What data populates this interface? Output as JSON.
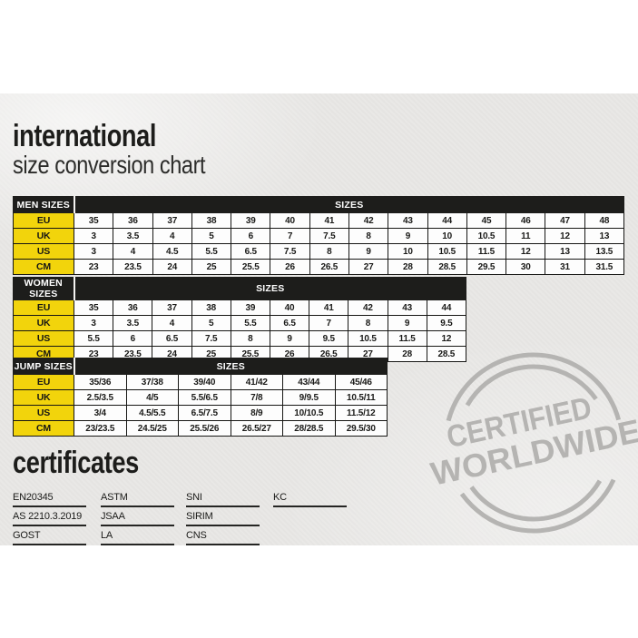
{
  "header": {
    "title_line1": "international",
    "title_line2": "size conversion chart"
  },
  "tables": [
    {
      "name": "men",
      "label": "MEN SIZES",
      "sizes_label": "SIZES",
      "rows": [
        {
          "label": "EU",
          "values": [
            "35",
            "36",
            "37",
            "38",
            "39",
            "40",
            "41",
            "42",
            "43",
            "44",
            "45",
            "46",
            "47",
            "48"
          ]
        },
        {
          "label": "UK",
          "values": [
            "3",
            "3.5",
            "4",
            "5",
            "6",
            "7",
            "7.5",
            "8",
            "9",
            "10",
            "10.5",
            "11",
            "12",
            "13"
          ]
        },
        {
          "label": "US",
          "values": [
            "3",
            "4",
            "4.5",
            "5.5",
            "6.5",
            "7.5",
            "8",
            "9",
            "10",
            "10.5",
            "11.5",
            "12",
            "13",
            "13.5"
          ]
        },
        {
          "label": "CM",
          "values": [
            "23",
            "23.5",
            "24",
            "25",
            "25.5",
            "26",
            "26.5",
            "27",
            "28",
            "28.5",
            "29.5",
            "30",
            "31",
            "31.5"
          ]
        }
      ]
    },
    {
      "name": "women",
      "label": "WOMEN SIZES",
      "sizes_label": "SIZES",
      "rows": [
        {
          "label": "EU",
          "values": [
            "35",
            "36",
            "37",
            "38",
            "39",
            "40",
            "41",
            "42",
            "43",
            "44"
          ]
        },
        {
          "label": "UK",
          "values": [
            "3",
            "3.5",
            "4",
            "5",
            "5.5",
            "6.5",
            "7",
            "8",
            "9",
            "9.5"
          ]
        },
        {
          "label": "US",
          "values": [
            "5.5",
            "6",
            "6.5",
            "7.5",
            "8",
            "9",
            "9.5",
            "10.5",
            "11.5",
            "12"
          ]
        },
        {
          "label": "CM",
          "values": [
            "23",
            "23.5",
            "24",
            "25",
            "25.5",
            "26",
            "26.5",
            "27",
            "28",
            "28.5"
          ]
        }
      ]
    },
    {
      "name": "jump",
      "label": "JUMP SIZES",
      "sizes_label": "SIZES",
      "rows": [
        {
          "label": "EU",
          "values": [
            "35/36",
            "37/38",
            "39/40",
            "41/42",
            "43/44",
            "45/46"
          ]
        },
        {
          "label": "UK",
          "values": [
            "2.5/3.5",
            "4/5",
            "5.5/6.5",
            "7/8",
            "9/9.5",
            "10.5/11"
          ]
        },
        {
          "label": "US",
          "values": [
            "3/4",
            "4.5/5.5",
            "6.5/7.5",
            "8/9",
            "10/10.5",
            "11.5/12"
          ]
        },
        {
          "label": "CM",
          "values": [
            "23/23.5",
            "24.5/25",
            "25.5/26",
            "26.5/27",
            "28/28.5",
            "29.5/30"
          ]
        }
      ]
    }
  ],
  "certificates": {
    "title": "certificates",
    "columns": [
      [
        "EN20345",
        "AS 2210.3.2019",
        "GOST"
      ],
      [
        "ASTM",
        "JSAA",
        "LA"
      ],
      [
        "SNI",
        "SIRIM",
        "CNS"
      ],
      [
        "KC"
      ]
    ]
  },
  "stamp": {
    "line1": "CERTIFIED",
    "line2": "WORLDWIDE"
  },
  "colors": {
    "accent_yellow": "#f2d40c",
    "header_black": "#1d1d1b",
    "stamp_gray": "#b1b0ae",
    "paper_gray": "#e9e8e6"
  }
}
